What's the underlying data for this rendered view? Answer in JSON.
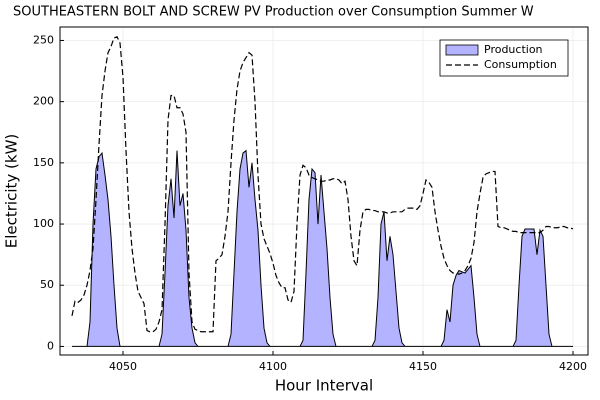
{
  "chart_data": {
    "type": "area-line",
    "title": "SOUTHEASTERN BOLT AND SCREW PV Production over Consumption Summer W",
    "xlabel": "Hour Interval",
    "ylabel": "Electricity (kW)",
    "x": [
      4033,
      4034,
      4035,
      4036,
      4037,
      4038,
      4039,
      4040,
      4041,
      4042,
      4043,
      4044,
      4045,
      4046,
      4047,
      4048,
      4049,
      4050,
      4051,
      4052,
      4053,
      4054,
      4055,
      4056,
      4057,
      4058,
      4059,
      4060,
      4061,
      4062,
      4063,
      4064,
      4065,
      4066,
      4067,
      4068,
      4069,
      4070,
      4071,
      4072,
      4073,
      4074,
      4075,
      4076,
      4077,
      4078,
      4079,
      4080,
      4081,
      4082,
      4083,
      4084,
      4085,
      4086,
      4087,
      4088,
      4089,
      4090,
      4091,
      4092,
      4093,
      4094,
      4095,
      4096,
      4097,
      4098,
      4099,
      4100,
      4101,
      4102,
      4103,
      4104,
      4105,
      4106,
      4107,
      4108,
      4109,
      4110,
      4111,
      4112,
      4113,
      4114,
      4115,
      4116,
      4117,
      4118,
      4119,
      4120,
      4121,
      4122,
      4123,
      4124,
      4125,
      4126,
      4127,
      4128,
      4129,
      4130,
      4131,
      4132,
      4133,
      4134,
      4135,
      4136,
      4137,
      4138,
      4139,
      4140,
      4141,
      4142,
      4143,
      4144,
      4145,
      4146,
      4147,
      4148,
      4149,
      4150,
      4151,
      4152,
      4153,
      4154,
      4155,
      4156,
      4157,
      4158,
      4159,
      4160,
      4161,
      4162,
      4163,
      4164,
      4165,
      4166,
      4167,
      4168,
      4169,
      4170,
      4171,
      4172,
      4173,
      4174,
      4175,
      4176,
      4177,
      4178,
      4179,
      4180,
      4181,
      4182,
      4183,
      4184,
      4185,
      4186,
      4187,
      4188,
      4189,
      4190,
      4191,
      4192,
      4193,
      4194,
      4195,
      4196,
      4197,
      4198,
      4199,
      4200
    ],
    "series": [
      {
        "name": "Production",
        "color": "#b3b3ff",
        "style": "area",
        "values": [
          0,
          0,
          0,
          0,
          0,
          0,
          20,
          100,
          145,
          155,
          158,
          140,
          120,
          90,
          50,
          15,
          0,
          0,
          0,
          0,
          0,
          0,
          0,
          0,
          0,
          0,
          0,
          0,
          0,
          0,
          10,
          60,
          115,
          137,
          105,
          160,
          115,
          125,
          95,
          40,
          15,
          3,
          0,
          0,
          0,
          0,
          0,
          0,
          0,
          0,
          0,
          0,
          0,
          10,
          60,
          110,
          145,
          158,
          160,
          130,
          150,
          120,
          95,
          50,
          15,
          3,
          0,
          0,
          0,
          0,
          0,
          0,
          0,
          0,
          0,
          0,
          0,
          5,
          60,
          120,
          145,
          142,
          100,
          140,
          110,
          80,
          40,
          10,
          0,
          0,
          0,
          0,
          0,
          0,
          0,
          0,
          0,
          0,
          0,
          0,
          0,
          5,
          40,
          100,
          110,
          70,
          90,
          75,
          45,
          15,
          3,
          0,
          0,
          0,
          0,
          0,
          0,
          0,
          0,
          0,
          0,
          0,
          0,
          0,
          5,
          30,
          20,
          50,
          58,
          62,
          61,
          60,
          63,
          66,
          40,
          10,
          0,
          0,
          0,
          0,
          0,
          0,
          0,
          0,
          0,
          0,
          0,
          0,
          5,
          50,
          90,
          96,
          96,
          96,
          96,
          75,
          95,
          90,
          50,
          10,
          0,
          0,
          0,
          0,
          0,
          0,
          0,
          0
        ]
      },
      {
        "name": "Consumption",
        "color": "#000000",
        "style": "dashed",
        "values": [
          25,
          37,
          36,
          38,
          42,
          50,
          62,
          80,
          120,
          165,
          205,
          225,
          240,
          245,
          252,
          253,
          248,
          220,
          160,
          110,
          80,
          60,
          45,
          40,
          35,
          13,
          12,
          12,
          14,
          20,
          30,
          100,
          185,
          205,
          205,
          195,
          195,
          190,
          175,
          60,
          20,
          14,
          13,
          12,
          12,
          12,
          12,
          12,
          70,
          72,
          75,
          90,
          110,
          150,
          185,
          210,
          225,
          232,
          236,
          240,
          238,
          200,
          140,
          100,
          88,
          82,
          76,
          68,
          58,
          52,
          48,
          48,
          38,
          36,
          45,
          100,
          140,
          148,
          146,
          140,
          138,
          137,
          136,
          135,
          135,
          136,
          136,
          137,
          137,
          136,
          133,
          135,
          120,
          90,
          70,
          66,
          95,
          110,
          112,
          112,
          111,
          111,
          110,
          110,
          110,
          109,
          109,
          110,
          110,
          110,
          110,
          112,
          113,
          113,
          113,
          112,
          115,
          125,
          136,
          134,
          130,
          110,
          95,
          82,
          72,
          66,
          62,
          60,
          60,
          59,
          60,
          62,
          66,
          72,
          85,
          110,
          125,
          138,
          141,
          142,
          143,
          143,
          98,
          97,
          97,
          96,
          95,
          94,
          94,
          93,
          93,
          93,
          93,
          93,
          93,
          93,
          93,
          95,
          98,
          98,
          97,
          97,
          97,
          98,
          98,
          97,
          97,
          96
        ]
      }
    ],
    "xlim": [
      4029,
      4205
    ],
    "ylim": [
      -7,
      261
    ],
    "xticks": [
      4050,
      4100,
      4150,
      4200
    ],
    "yticks": [
      0,
      50,
      100,
      150,
      200,
      250
    ],
    "grid": true,
    "legend": "top-right"
  }
}
